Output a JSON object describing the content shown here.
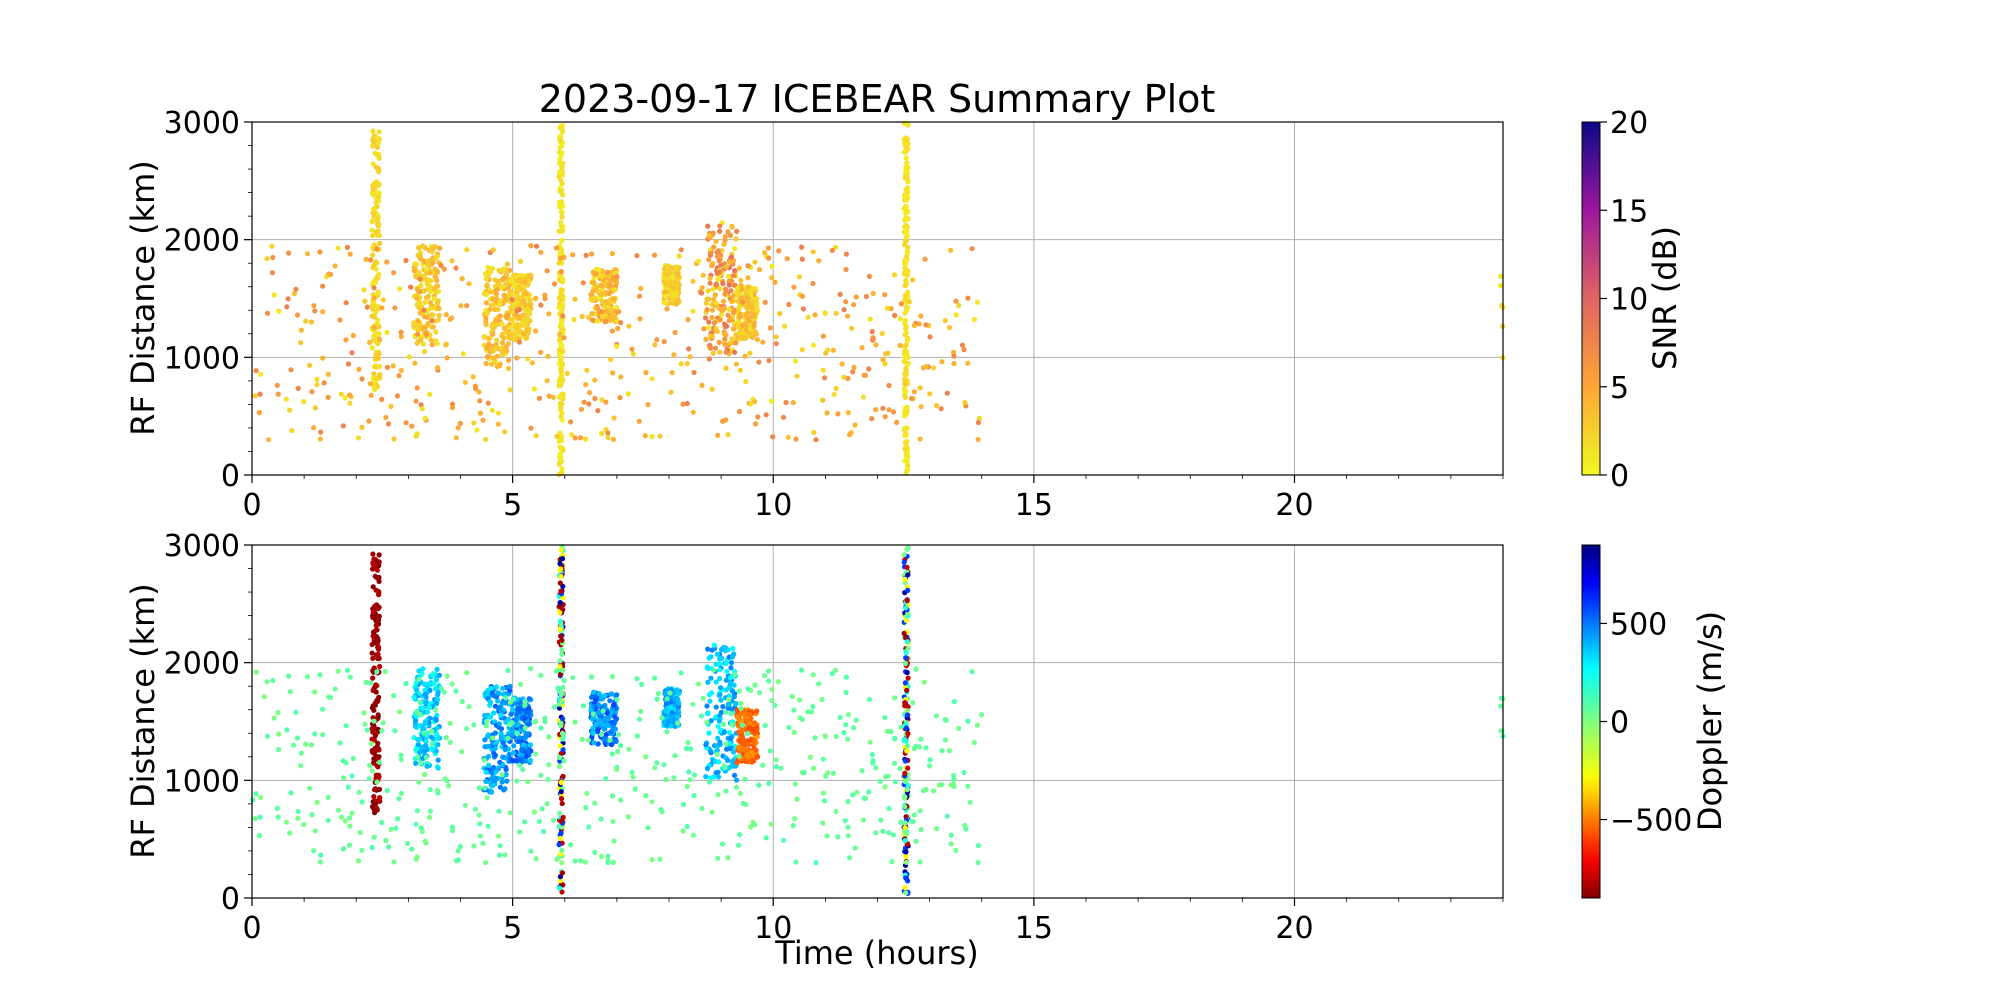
{
  "chart_data": [
    {
      "type": "scatter",
      "title": "2023-09-17 ICEBEAR Summary Plot",
      "xlabel": "",
      "ylabel": "RF Distance (km)",
      "xlim": [
        0,
        24
      ],
      "ylim": [
        0,
        3000
      ],
      "xticks": [
        "0",
        "5",
        "10",
        "15",
        "20"
      ],
      "yticks": [
        "0",
        "1000",
        "2000",
        "3000"
      ],
      "grid": true,
      "color_variable": "SNR",
      "colorbar": {
        "label": "SNR (dB)",
        "range": [
          0,
          20
        ],
        "ticks": [
          "0",
          "5",
          "10",
          "15",
          "20"
        ],
        "colormap": "plasma_r"
      },
      "clusters": [
        {
          "x": [
            2.3,
            2.45
          ],
          "y": [
            650,
            2950
          ],
          "snr": [
            1,
            3
          ],
          "kind": "column"
        },
        {
          "x": 5.93,
          "y": [
            0,
            3000
          ],
          "snr": [
            0.5,
            2
          ],
          "kind": "column"
        },
        {
          "x": 12.55,
          "y": [
            0,
            3000
          ],
          "snr": [
            0.5,
            2
          ],
          "kind": "column"
        },
        {
          "x": [
            3.1,
            3.6
          ],
          "y": [
            1100,
            1950
          ],
          "snr": [
            1,
            5
          ]
        },
        {
          "x": [
            4.45,
            4.95
          ],
          "y": [
            900,
            1800
          ],
          "snr": [
            1,
            5
          ]
        },
        {
          "x": [
            4.95,
            5.35
          ],
          "y": [
            1150,
            1700
          ],
          "snr": [
            1,
            4
          ]
        },
        {
          "x": [
            6.5,
            7.0
          ],
          "y": [
            1300,
            1750
          ],
          "snr": [
            1,
            6
          ]
        },
        {
          "x": [
            7.9,
            8.2
          ],
          "y": [
            1450,
            1780
          ],
          "snr": [
            1,
            4
          ]
        },
        {
          "x": [
            8.7,
            9.3
          ],
          "y": [
            1000,
            2150
          ],
          "snr": [
            1,
            9
          ]
        },
        {
          "x": [
            9.3,
            9.7
          ],
          "y": [
            1150,
            1600
          ],
          "snr": [
            1,
            5
          ]
        },
        {
          "x": [
            0,
            14
          ],
          "y": [
            300,
            1950
          ],
          "snr": [
            1,
            8
          ],
          "kind": "scattered"
        },
        {
          "x": [
            23.95,
            24
          ],
          "y": [
            950,
            1700
          ],
          "snr": [
            1,
            3
          ],
          "kind": "scattered"
        }
      ]
    },
    {
      "type": "scatter",
      "title": "",
      "xlabel": "Time (hours)",
      "ylabel": "RF Distance (km)",
      "xlim": [
        0,
        24
      ],
      "ylim": [
        0,
        3000
      ],
      "xticks": [
        "0",
        "5",
        "10",
        "15",
        "20"
      ],
      "yticks": [
        "0",
        "1000",
        "2000",
        "3000"
      ],
      "grid": true,
      "color_variable": "Doppler",
      "colorbar": {
        "label": "Doppler (m/s)",
        "range": [
          -900,
          900
        ],
        "ticks": [
          "−500",
          "0",
          "500"
        ],
        "tick_values": [
          -500,
          0,
          500
        ],
        "colormap": "jet_r"
      },
      "clusters": [
        {
          "x": [
            2.3,
            2.45
          ],
          "y": [
            650,
            2950
          ],
          "doppler": [
            -900,
            -800
          ],
          "kind": "column"
        },
        {
          "x": 5.93,
          "y": [
            0,
            3000
          ],
          "doppler": [
            -900,
            900
          ],
          "kind": "column-mixed"
        },
        {
          "x": 12.55,
          "y": [
            0,
            3000
          ],
          "doppler": [
            -900,
            900
          ],
          "kind": "column-mixed"
        },
        {
          "x": [
            3.1,
            3.6
          ],
          "y": [
            1100,
            1950
          ],
          "doppler": [
            200,
            450
          ]
        },
        {
          "x": [
            4.45,
            4.95
          ],
          "y": [
            900,
            1800
          ],
          "doppler": [
            300,
            550
          ]
        },
        {
          "x": [
            4.95,
            5.35
          ],
          "y": [
            1150,
            1700
          ],
          "doppler": [
            350,
            600
          ]
        },
        {
          "x": [
            6.5,
            7.0
          ],
          "y": [
            1300,
            1750
          ],
          "doppler": [
            350,
            600
          ]
        },
        {
          "x": [
            7.9,
            8.2
          ],
          "y": [
            1450,
            1780
          ],
          "doppler": [
            300,
            500
          ]
        },
        {
          "x": [
            8.7,
            9.3
          ],
          "y": [
            1000,
            2150
          ],
          "doppler": [
            250,
            500
          ]
        },
        {
          "x": [
            9.3,
            9.7
          ],
          "y": [
            1150,
            1600
          ],
          "doppler": [
            -600,
            -450
          ]
        },
        {
          "x": [
            0,
            14
          ],
          "y": [
            300,
            1950
          ],
          "doppler": [
            0,
            100
          ],
          "kind": "scattered"
        },
        {
          "x": [
            23.95,
            24
          ],
          "y": [
            950,
            1700
          ],
          "doppler": [
            0,
            100
          ],
          "kind": "scattered"
        }
      ]
    }
  ]
}
